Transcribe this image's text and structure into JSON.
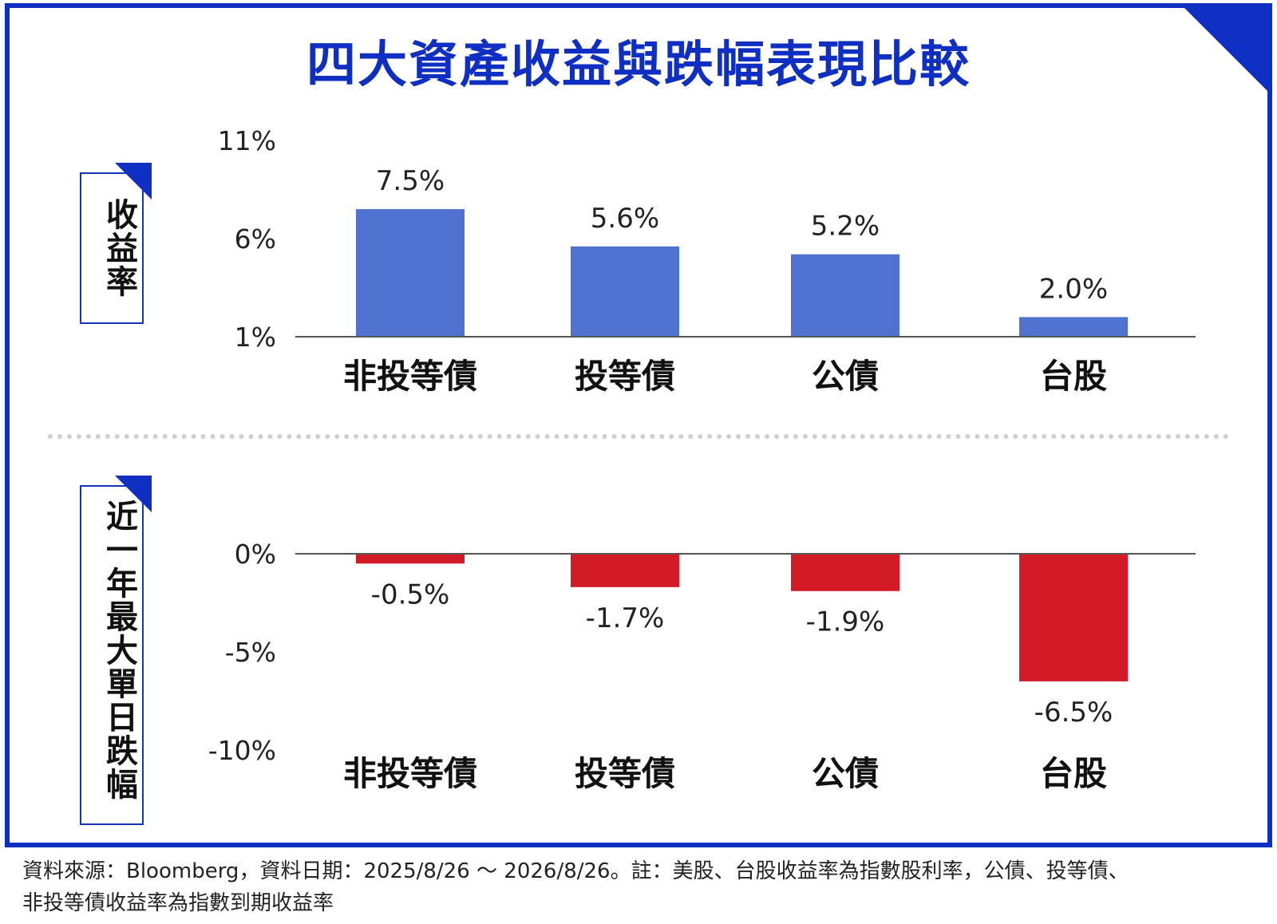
{
  "title": "四大資產收益與跌幅表現比較",
  "colors": {
    "frame": "#0e2fc2",
    "positive_bar": "#4f72d0",
    "negative_bar": "#d31a27",
    "axis": "#555555"
  },
  "chart_data": [
    {
      "type": "bar",
      "side_label": "收益率",
      "categories": [
        "非投等債",
        "投等債",
        "公債",
        "台股"
      ],
      "values": [
        7.5,
        5.6,
        5.2,
        2.0
      ],
      "value_labels": [
        "7.5%",
        "5.6%",
        "5.2%",
        "2.0%"
      ],
      "yticks": [
        "11%",
        "6%",
        "1%"
      ],
      "ylim": [
        1,
        11
      ],
      "color": "#4f72d0"
    },
    {
      "type": "bar",
      "side_label": "近一年最大單日跌幅",
      "categories": [
        "非投等債",
        "投等債",
        "公債",
        "台股"
      ],
      "values": [
        -0.5,
        -1.7,
        -1.9,
        -6.5
      ],
      "value_labels": [
        "-0.5%",
        "-1.7%",
        "-1.9%",
        "-6.5%"
      ],
      "yticks": [
        "0%",
        "-5%",
        "-10%"
      ],
      "ylim": [
        -10,
        0
      ],
      "color": "#d31a27"
    }
  ],
  "source": {
    "line1": "資料來源：Bloomberg，資料日期：2025/8/26 ～ 2026/8/26。註：美股、台股收益率為指數股利率，公債、投等債、",
    "line2": "非投等債收益率為指數到期收益率"
  }
}
